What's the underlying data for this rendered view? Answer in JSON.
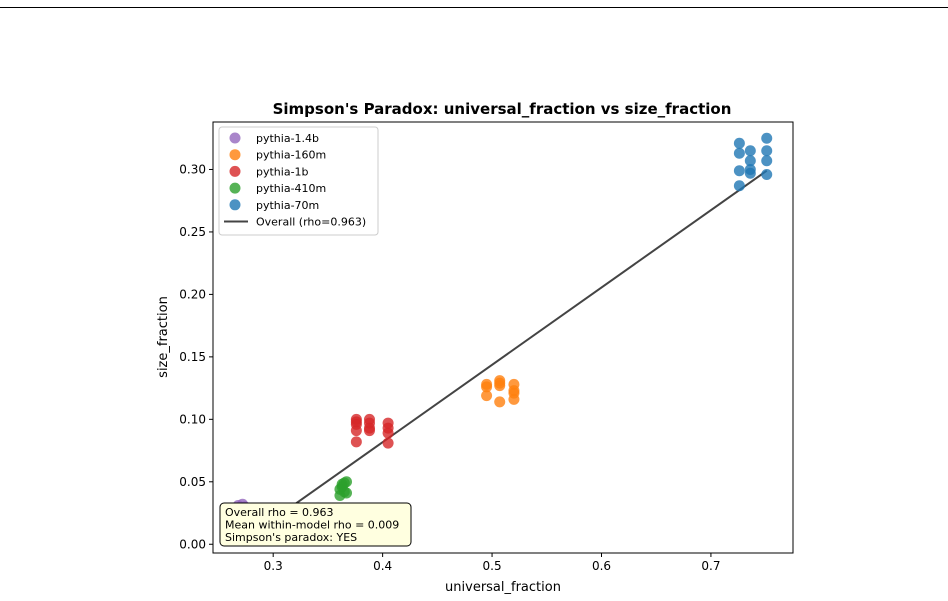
{
  "chart_data": {
    "type": "scatter",
    "title": "Simpson's Paradox: universal_fraction vs size_fraction",
    "xlabel": "universal_fraction",
    "ylabel": "size_fraction",
    "xlim": [
      0.245,
      0.775
    ],
    "ylim": [
      -0.007,
      0.338
    ],
    "xticks": [
      0.3,
      0.4,
      0.5,
      0.6,
      0.7
    ],
    "xtick_labels": [
      "0.3",
      "0.4",
      "0.5",
      "0.6",
      "0.7"
    ],
    "yticks": [
      0.0,
      0.05,
      0.1,
      0.15,
      0.2,
      0.25,
      0.3
    ],
    "ytick_labels": [
      "0.00",
      "0.05",
      "0.10",
      "0.15",
      "0.20",
      "0.25",
      "0.30"
    ],
    "grid": false,
    "legend_position": "top-left",
    "series": [
      {
        "name": "pythia-1.4b",
        "color": "#9467bd",
        "x": [
          0.268,
          0.272,
          0.27,
          0.274
        ],
        "y": [
          0.031,
          0.032,
          0.029,
          0.03
        ]
      },
      {
        "name": "pythia-160m",
        "color": "#ff7f0e",
        "x": [
          0.495,
          0.495,
          0.495,
          0.507,
          0.507,
          0.507,
          0.507,
          0.52,
          0.52,
          0.52,
          0.52
        ],
        "y": [
          0.119,
          0.126,
          0.128,
          0.114,
          0.127,
          0.129,
          0.131,
          0.116,
          0.121,
          0.123,
          0.128
        ]
      },
      {
        "name": "pythia-1b",
        "color": "#d62728",
        "x": [
          0.376,
          0.376,
          0.376,
          0.376,
          0.376,
          0.388,
          0.388,
          0.388,
          0.388,
          0.405,
          0.405,
          0.405,
          0.405
        ],
        "y": [
          0.082,
          0.091,
          0.096,
          0.098,
          0.1,
          0.091,
          0.093,
          0.097,
          0.1,
          0.081,
          0.089,
          0.093,
          0.097
        ]
      },
      {
        "name": "pythia-410m",
        "color": "#2ca02c",
        "x": [
          0.361,
          0.361,
          0.363,
          0.363,
          0.365,
          0.365,
          0.367,
          0.367
        ],
        "y": [
          0.039,
          0.044,
          0.046,
          0.048,
          0.042,
          0.049,
          0.041,
          0.05
        ]
      },
      {
        "name": "pythia-70m",
        "color": "#1f77b4",
        "x": [
          0.726,
          0.726,
          0.726,
          0.726,
          0.736,
          0.736,
          0.736,
          0.736,
          0.751,
          0.751,
          0.751,
          0.751
        ],
        "y": [
          0.287,
          0.299,
          0.313,
          0.321,
          0.297,
          0.3,
          0.307,
          0.315,
          0.296,
          0.307,
          0.315,
          0.325
        ]
      }
    ],
    "fit_line": {
      "name": "Overall (rho=0.963)",
      "color": "#444444",
      "x": [
        0.268,
        0.751
      ],
      "y": [
        0.0,
        0.299
      ]
    },
    "annotation": {
      "lines": [
        "Overall rho = 0.963",
        "Mean within-model rho = 0.009",
        "Simpson's paradox: YES"
      ],
      "background": "#ffffe0"
    }
  }
}
